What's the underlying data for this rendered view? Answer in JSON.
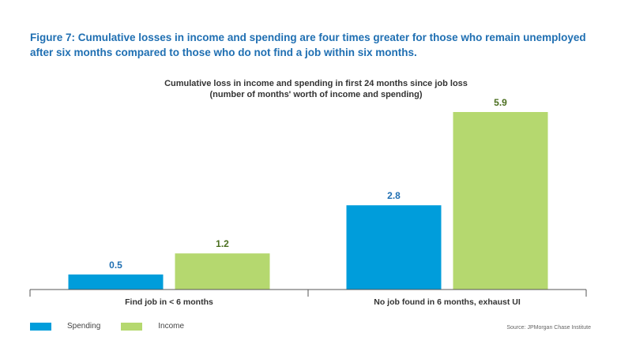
{
  "figure_title": "Figure 7: Cumulative losses in income and spending are four times greater for those who remain unemployed after six months compared to those who do not find a job within six months.",
  "source": "Source:  JPMorgan Chase Institute",
  "chart_data": {
    "type": "bar",
    "title": "Cumulative loss in income and spending in first 24 months since job loss",
    "subtitle": "(number of months' worth of income and spending)",
    "categories": [
      "Find job in < 6 months",
      "No job found in 6 months, exhaust UI"
    ],
    "series": [
      {
        "name": "Spending",
        "values": [
          0.5,
          2.8
        ],
        "color": "#009ddb",
        "label_color": "#1f6fb2"
      },
      {
        "name": "Income",
        "values": [
          1.2,
          5.9
        ],
        "color": "#b5d86f",
        "label_color": "#4a6e1e"
      }
    ],
    "ylim": [
      0,
      5.9
    ],
    "grid": false,
    "legend": "bottom-left"
  }
}
